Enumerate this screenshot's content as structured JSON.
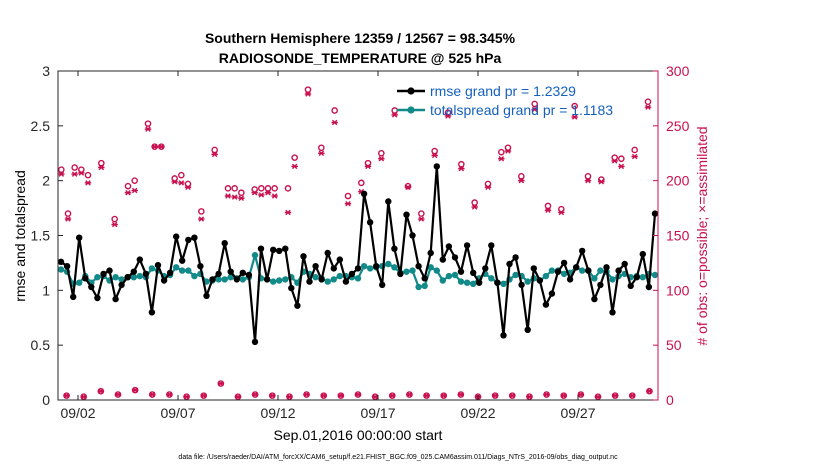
{
  "chart_data": {
    "type": "line",
    "title_line1": "Southern Hemisphere 12359 / 12567 = 98.345%",
    "title_line2": "RADIOSONDE_TEMPERATURE @ 525 hPa",
    "xlabel": "Sep.01,2016 00:00:00 start",
    "ylabel_left": "rmse and totalspread",
    "ylabel_right": "# of obs: o=possible; ×=assimilated",
    "footnote": "data file: /Users/raeder/DAI/ATM_forcXX/CAM6_setup/f.e21.FHIST_BGC.f09_025.CAM6assim.011/Diags_NTrS_2016-09/obs_diag_output.nc",
    "x_tick_labels": [
      "09/02",
      "09/07",
      "09/12",
      "09/17",
      "09/22",
      "09/27"
    ],
    "x_tick_days": [
      2,
      7,
      12,
      17,
      22,
      27
    ],
    "xlim": [
      1,
      31
    ],
    "ylim_left": [
      0,
      3
    ],
    "y_left_ticks": [
      "0",
      "0.5",
      "1",
      "1.5",
      "2",
      "2.5",
      "3"
    ],
    "ylim_right": [
      0,
      300
    ],
    "y_right_ticks": [
      "0",
      "50",
      "100",
      "150",
      "200",
      "250",
      "300"
    ],
    "colors": {
      "rmse": "#000000",
      "spread": "#128a8a",
      "obs": "#c8104e",
      "legend_text": "#1560bd"
    },
    "series": [
      {
        "name": "rmse",
        "legend": "rmse grand pr = 1.2329",
        "values": [
          1.26,
          1.22,
          0.94,
          1.48,
          1.11,
          1.03,
          0.93,
          1.15,
          1.18,
          0.92,
          1.05,
          1.12,
          1.17,
          1.28,
          1.15,
          0.8,
          1.23,
          1.09,
          1.16,
          1.49,
          1.27,
          1.46,
          1.48,
          1.22,
          0.95,
          1.1,
          1.15,
          1.43,
          1.17,
          1.1,
          1.16,
          1.14,
          0.53,
          1.38,
          1.1,
          1.37,
          1.36,
          1.38,
          1.02,
          0.86,
          1.31,
          1.08,
          1.22,
          1.1,
          1.34,
          1.2,
          1.28,
          1.08,
          1.15,
          1.2,
          1.88,
          1.62,
          1.22,
          1.05,
          1.81,
          1.38,
          1.15,
          1.69,
          1.5,
          1.22,
          1.11,
          1.34,
          2.13,
          1.28,
          1.4,
          1.3,
          1.17,
          1.41,
          1.16,
          1.07,
          1.2,
          1.41,
          1.07,
          0.59,
          1.24,
          1.3,
          1.05,
          0.64,
          1.2,
          1.09,
          0.87,
          0.97,
          1.17,
          1.25,
          1.1,
          1.21,
          1.36,
          1.18,
          0.92,
          1.05,
          1.21,
          0.8,
          1.18,
          1.24,
          1.04,
          1.12,
          1.33,
          1.03,
          1.7
        ],
        "possible": [
          210,
          170,
          212,
          210,
          205,
          0,
          216,
          0,
          165,
          0,
          195,
          200,
          0,
          252,
          231,
          231,
          0,
          202,
          205,
          197,
          0,
          172,
          0,
          228,
          0,
          193,
          193,
          189,
          0,
          192,
          193,
          193,
          193,
          0,
          193,
          221,
          0,
          283,
          0,
          230,
          0,
          264,
          0,
          186,
          0,
          198,
          216,
          0,
          225,
          0,
          264,
          0,
          195,
          0,
          170,
          0,
          227,
          0,
          262,
          0,
          215,
          0,
          180,
          0,
          197,
          0,
          226,
          230,
          0,
          204,
          0,
          270,
          0,
          177,
          0,
          174,
          0,
          268,
          0,
          204,
          0,
          201,
          0,
          221,
          220,
          0,
          228,
          0,
          272,
          0
        ],
        "assimilated": [
          206,
          165,
          206,
          207,
          198,
          0,
          212,
          0,
          160,
          0,
          189,
          191,
          0,
          247,
          231,
          231,
          0,
          199,
          198,
          194,
          0,
          165,
          0,
          224,
          0,
          186,
          185,
          184,
          0,
          189,
          187,
          189,
          186,
          0,
          171,
          213,
          0,
          279,
          0,
          225,
          0,
          253,
          0,
          179,
          0,
          190,
          213,
          0,
          220,
          0,
          260,
          0,
          194,
          0,
          165,
          0,
          223,
          0,
          259,
          0,
          211,
          0,
          176,
          0,
          194,
          0,
          220,
          227,
          0,
          200,
          0,
          265,
          0,
          173,
          0,
          171,
          0,
          258,
          0,
          200,
          0,
          199,
          0,
          218,
          213,
          0,
          222,
          0,
          267,
          0
        ]
      },
      {
        "name": "totalspread",
        "legend": "totalspread grand pr = 1.1183",
        "values": [
          1.19,
          1.17,
          1.06,
          1.07,
          1.13,
          1.07,
          1.12,
          1.13,
          1.09,
          1.12,
          1.1,
          1.12,
          1.12,
          1.13,
          1.12,
          1.2,
          1.18,
          1.13,
          1.14,
          1.21,
          1.18,
          1.18,
          1.13,
          1.15,
          1.08,
          1.09,
          1.1,
          1.1,
          1.12,
          1.11,
          1.1,
          1.12,
          1.32,
          1.11,
          1.1,
          1.08,
          1.09,
          1.1,
          1.12,
          1.07,
          1.17,
          1.15,
          1.12,
          1.11,
          1.08,
          1.1,
          1.13,
          1.13,
          1.12,
          1.11,
          1.22,
          1.2,
          1.21,
          1.22,
          1.24,
          1.21,
          1.16,
          1.17,
          1.18,
          1.03,
          1.04,
          1.21,
          1.18,
          1.09,
          1.13,
          1.14,
          1.08,
          1.07,
          1.06,
          1.11,
          1.15,
          1.11,
          1.07,
          1.06,
          1.1,
          1.14,
          1.13,
          1.08,
          1.11,
          1.09,
          1.13,
          1.18,
          1.18,
          1.15,
          1.16,
          1.21,
          1.18,
          1.18,
          1.11,
          1.18,
          1.17,
          1.1,
          1.13,
          1.15,
          1.12,
          1.13,
          1.12,
          1.15,
          1.14
        ],
        "possible_scatter": [
          4,
          3,
          8,
          5,
          9,
          5,
          5,
          3,
          4,
          15,
          3,
          5,
          4,
          3,
          5,
          4,
          4,
          5,
          3,
          4,
          5,
          4,
          4,
          5,
          3,
          4,
          4,
          3,
          5,
          4,
          5,
          3,
          4,
          4,
          8
        ]
      }
    ]
  }
}
